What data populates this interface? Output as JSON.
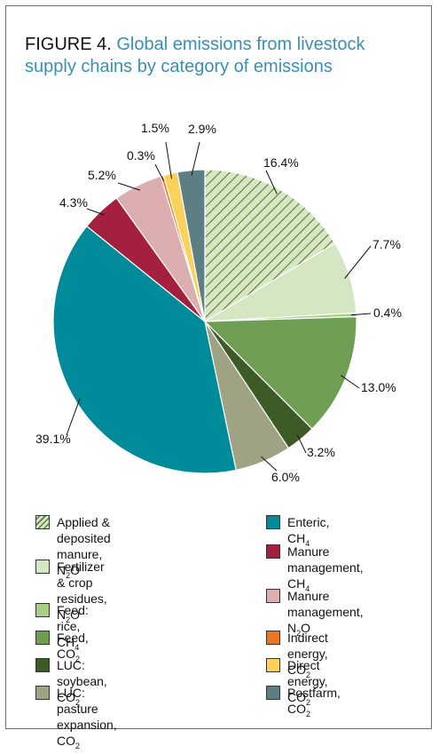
{
  "figure": {
    "prefix": "FIGURE 4.",
    "title": "Global emissions from livestock supply chains by category of emissions"
  },
  "chart_data": {
    "type": "pie",
    "unit": "%",
    "slices": [
      {
        "key": "applied",
        "label": "Applied & deposited manure, N₂O",
        "value": 16.4,
        "value_label": "16.4%",
        "color": "#d7e7c3",
        "hatch": true
      },
      {
        "key": "fertilizer",
        "label": "Fertilizer & crop residues, N₂O",
        "value": 7.7,
        "value_label": "7.7%",
        "color": "#d5e6c2"
      },
      {
        "key": "rice",
        "label": "Feed: rice, CH₄",
        "value": 0.4,
        "value_label": "0.4%",
        "color": "#a6cf88"
      },
      {
        "key": "feedco2",
        "label": "Feed, CO₂",
        "value": 13.0,
        "value_label": "13.0%",
        "color": "#6e9e54"
      },
      {
        "key": "soybean",
        "label": "LUC: soybean, CO₂",
        "value": 3.2,
        "value_label": "3.2%",
        "color": "#3e5a27"
      },
      {
        "key": "pasture",
        "label": "LUC: pasture expansion, CO₂",
        "value": 6.0,
        "value_label": "6.0%",
        "color": "#9fa384"
      },
      {
        "key": "enteric",
        "label": "Enteric, CH₄",
        "value": 39.1,
        "value_label": "39.1%",
        "color": "#008b9a"
      },
      {
        "key": "manurech4",
        "label": "Manure management, CH₄",
        "value": 4.3,
        "value_label": "4.3%",
        "color": "#a3213f"
      },
      {
        "key": "manuren2o",
        "label": "Manure management, N₂O",
        "value": 5.2,
        "value_label": "5.2%",
        "color": "#dcaeb0"
      },
      {
        "key": "indirect",
        "label": "Indirect energy, CO₂",
        "value": 0.3,
        "value_label": "0.3%",
        "color": "#e87722"
      },
      {
        "key": "direct",
        "label": "Direct energy, CO₂",
        "value": 1.5,
        "value_label": "1.5%",
        "color": "#fcd25c"
      },
      {
        "key": "postfarm",
        "label": "Postfarm, CO₂",
        "value": 2.9,
        "value_label": "2.9%",
        "color": "#5d7f83"
      }
    ],
    "legend_placement": "bottom"
  },
  "legend": {
    "left": [
      {
        "key": "applied",
        "line1": "Applied & deposited",
        "line2": "manure, N",
        "sub": "2",
        "tail": "O"
      },
      {
        "key": "fertilizer",
        "line1": "Fertilizer & crop",
        "line2": "residues, N",
        "sub": "2",
        "tail": "O"
      },
      {
        "key": "rice",
        "line1": "Feed: rice, CH",
        "sub": "4",
        "tail": ""
      },
      {
        "key": "feedco2",
        "line1": "Feed, CO",
        "sub": "2",
        "tail": ""
      },
      {
        "key": "soybean",
        "line1": "LUC: soybean, CO",
        "sub": "2",
        "tail": ""
      },
      {
        "key": "pasture",
        "line1": "LUC: pasture expansion, CO",
        "sub": "2",
        "tail": ""
      }
    ],
    "right": [
      {
        "key": "enteric",
        "line1": "Enteric, CH",
        "sub": "4",
        "tail": ""
      },
      {
        "key": "manurech4",
        "line1": "Manure",
        "line2": "management, CH",
        "sub": "4",
        "tail": ""
      },
      {
        "key": "manuren2o",
        "line1": "Manure",
        "line2": "management, N",
        "sub": "2",
        "tail": "O"
      },
      {
        "key": "indirect",
        "line1": "Indirect energy, CO",
        "sub": "2",
        "tail": ""
      },
      {
        "key": "direct",
        "line1": "Direct energy, CO",
        "sub": "2",
        "tail": ""
      },
      {
        "key": "postfarm",
        "line1": "Postfarm, CO",
        "sub": "2",
        "tail": ""
      }
    ]
  }
}
